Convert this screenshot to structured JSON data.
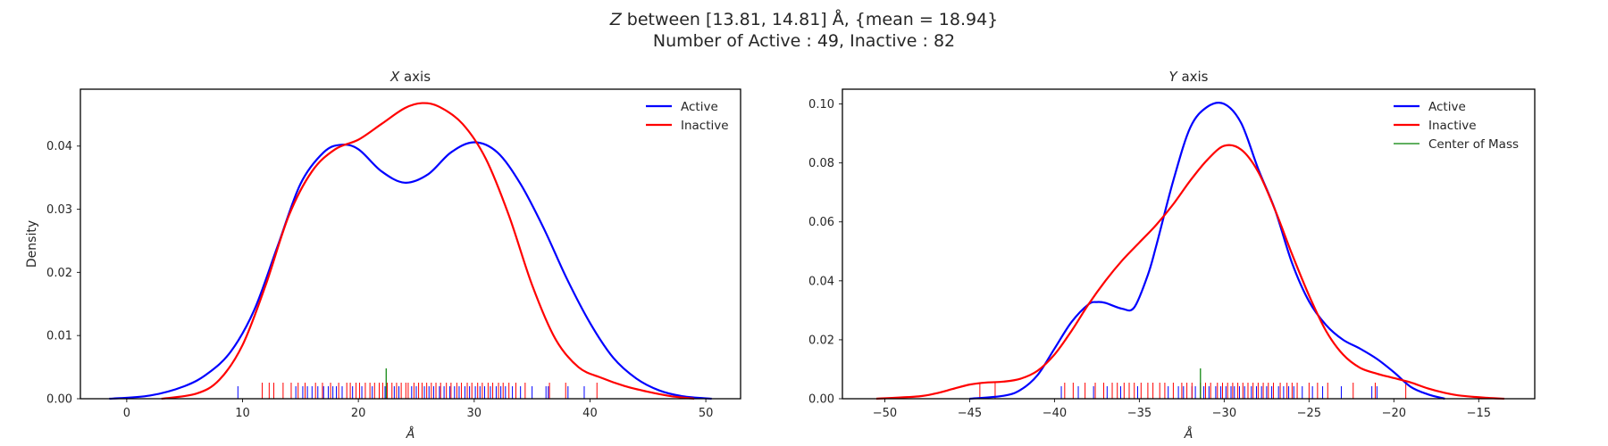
{
  "figure": {
    "title_var": "Z",
    "title_line1": " between [13.81, 14.81] Å, {mean = 18.94}",
    "title_line2": "Number of Active : 49, Inactive : 82"
  },
  "colors": {
    "active": "#0000ff",
    "inactive": "#ff0000",
    "center": "#008000",
    "axes": "#000000"
  },
  "chart_data": [
    {
      "type": "line",
      "title_var": "X",
      "title_rest": " axis",
      "xlabel": "Å",
      "ylabel": "Density",
      "xlim": [
        -4.0,
        53.0
      ],
      "ylim": [
        0.0,
        0.049
      ],
      "xticks": [
        0,
        10,
        20,
        30,
        40,
        50
      ],
      "xtick_labels": [
        "0",
        "10",
        "20",
        "30",
        "40",
        "50"
      ],
      "yticks": [
        0.0,
        0.01,
        0.02,
        0.03,
        0.04
      ],
      "ytick_labels": [
        "0.00",
        "0.01",
        "0.02",
        "0.03",
        "0.04"
      ],
      "legend": {
        "placement": "top-right",
        "entries": [
          "Active",
          "Inactive"
        ]
      },
      "series": [
        {
          "name": "Active",
          "color": "#0000ff",
          "x": [
            -1.5,
            2,
            5,
            7,
            9,
            11,
            13,
            15,
            17,
            18.5,
            20,
            22,
            24,
            26,
            28,
            30,
            32,
            34,
            36,
            38,
            40,
            42,
            44,
            46,
            48,
            50.5
          ],
          "y": [
            0.0,
            0.0005,
            0.002,
            0.004,
            0.0075,
            0.014,
            0.024,
            0.034,
            0.039,
            0.0402,
            0.0395,
            0.036,
            0.0342,
            0.0355,
            0.039,
            0.0406,
            0.039,
            0.034,
            0.027,
            0.019,
            0.012,
            0.0065,
            0.0032,
            0.0013,
            0.0004,
            0.0
          ]
        },
        {
          "name": "Inactive",
          "color": "#ff0000",
          "x": [
            3,
            6,
            8,
            10,
            12,
            14,
            16,
            18,
            20,
            22,
            24,
            25.5,
            27,
            29,
            31,
            33,
            35,
            37,
            39,
            41,
            43,
            45,
            47,
            49
          ],
          "y": [
            0.0,
            0.0008,
            0.003,
            0.0085,
            0.018,
            0.029,
            0.036,
            0.0395,
            0.041,
            0.0435,
            0.046,
            0.0468,
            0.0462,
            0.0435,
            0.038,
            0.029,
            0.018,
            0.0095,
            0.005,
            0.0033,
            0.002,
            0.0011,
            0.0004,
            0.0
          ]
        }
      ],
      "rug": {
        "active": [
          9.6,
          14.6,
          15.2,
          15.6,
          16.0,
          16.5,
          17.0,
          17.4,
          17.8,
          18.1,
          18.6,
          19.5,
          20.3,
          21.2,
          22.3,
          23.1,
          23.5,
          24.6,
          25.0,
          25.7,
          26.1,
          26.5,
          27.0,
          27.4,
          27.9,
          28.3,
          28.7,
          29.2,
          29.6,
          30.1,
          30.5,
          30.9,
          31.4,
          31.9,
          32.3,
          32.7,
          33.3,
          34.0,
          35.0,
          36.2,
          36.4,
          38.1,
          39.5
        ],
        "inactive": [
          11.7,
          12.3,
          12.7,
          13.5,
          14.2,
          14.8,
          15.4,
          16.3,
          16.9,
          17.6,
          18.3,
          19.0,
          19.3,
          19.8,
          20.1,
          20.6,
          21.0,
          21.4,
          21.8,
          22.1,
          22.5,
          22.9,
          23.3,
          23.7,
          24.1,
          24.3,
          24.8,
          25.2,
          25.5,
          25.9,
          26.3,
          26.7,
          27.1,
          27.6,
          28.0,
          28.5,
          28.9,
          29.4,
          29.8,
          30.3,
          30.7,
          31.2,
          31.6,
          32.1,
          32.5,
          33.0,
          33.6,
          34.4,
          36.5,
          37.9,
          40.6
        ],
        "center": 22.4
      }
    },
    {
      "type": "line",
      "title_var": "Y",
      "title_rest": " axis",
      "xlabel": "Å",
      "ylabel": "",
      "xlim": [
        -52.5,
        -11.7
      ],
      "ylim": [
        0.0,
        0.105
      ],
      "xticks": [
        -50,
        -45,
        -40,
        -35,
        -30,
        -25,
        -20,
        -15
      ],
      "xtick_labels": [
        "−50",
        "−45",
        "−40",
        "−35",
        "−30",
        "−25",
        "−20",
        "−15"
      ],
      "yticks": [
        0.0,
        0.02,
        0.04,
        0.06,
        0.08,
        0.1
      ],
      "ytick_labels": [
        "0.00",
        "0.02",
        "0.04",
        "0.06",
        "0.08",
        "0.10"
      ],
      "legend": {
        "placement": "top-right",
        "entries": [
          "Active",
          "Inactive",
          "Center of Mass"
        ]
      },
      "series": [
        {
          "name": "Active",
          "color": "#0000ff",
          "x": [
            -45,
            -43,
            -42,
            -41,
            -40,
            -39,
            -38,
            -37.5,
            -37,
            -36,
            -35.3,
            -34.5,
            -34,
            -33,
            -32,
            -31,
            -30,
            -29,
            -28,
            -27,
            -26,
            -25,
            -24,
            -23,
            -22,
            -21,
            -20,
            -19,
            -18,
            -17
          ],
          "y": [
            0.0,
            0.001,
            0.003,
            0.008,
            0.017,
            0.026,
            0.032,
            0.0328,
            0.0325,
            0.0305,
            0.031,
            0.042,
            0.052,
            0.074,
            0.092,
            0.099,
            0.1,
            0.0935,
            0.078,
            0.064,
            0.046,
            0.033,
            0.025,
            0.02,
            0.017,
            0.0135,
            0.009,
            0.004,
            0.0015,
            0.0
          ]
        },
        {
          "name": "Inactive",
          "color": "#ff0000",
          "x": [
            -50.5,
            -48,
            -47,
            -46,
            -45,
            -44,
            -43,
            -42,
            -41,
            -40,
            -39,
            -38,
            -37,
            -36,
            -35,
            -34,
            -33,
            -32,
            -31,
            -30,
            -29,
            -28,
            -27,
            -26,
            -25,
            -24,
            -23,
            -22,
            -21,
            -20,
            -19,
            -18,
            -17,
            -16,
            -14.5,
            -13.5
          ],
          "y": [
            0.0,
            0.0008,
            0.0018,
            0.0033,
            0.0048,
            0.0055,
            0.0058,
            0.0068,
            0.0095,
            0.015,
            0.023,
            0.032,
            0.04,
            0.047,
            0.053,
            0.059,
            0.066,
            0.074,
            0.081,
            0.0858,
            0.0845,
            0.077,
            0.064,
            0.049,
            0.035,
            0.023,
            0.015,
            0.0105,
            0.0085,
            0.007,
            0.0055,
            0.0035,
            0.002,
            0.001,
            0.0003,
            0.0
          ]
        }
      ],
      "rug": {
        "active": [
          -39.6,
          -38.6,
          -37.7,
          -36.9,
          -36.1,
          -35.1,
          -33.3,
          -32.7,
          -32.4,
          -31.9,
          -31.7,
          -31.2,
          -30.9,
          -30.5,
          -30.2,
          -29.9,
          -29.6,
          -29.4,
          -29.1,
          -28.8,
          -28.4,
          -28.1,
          -27.8,
          -27.5,
          -27.2,
          -26.8,
          -26.5,
          -26.2,
          -25.9,
          -25.4,
          -24.8,
          -24.2,
          -23.1,
          -21.3,
          -21.0
        ],
        "inactive": [
          -44.4,
          -43.5,
          -39.4,
          -38.9,
          -38.2,
          -37.6,
          -37.1,
          -36.6,
          -36.3,
          -35.9,
          -35.6,
          -35.3,
          -34.9,
          -34.5,
          -34.2,
          -33.8,
          -33.5,
          -33.0,
          -32.5,
          -32.2,
          -31.9,
          -31.4,
          -31.1,
          -30.8,
          -30.4,
          -30.1,
          -29.8,
          -29.5,
          -29.2,
          -28.9,
          -28.6,
          -28.3,
          -28.0,
          -27.7,
          -27.4,
          -27.1,
          -26.7,
          -26.3,
          -26.0,
          -25.7,
          -25.0,
          -24.5,
          -23.9,
          -22.4,
          -21.1,
          -19.3
        ],
        "center": -31.4
      }
    }
  ]
}
